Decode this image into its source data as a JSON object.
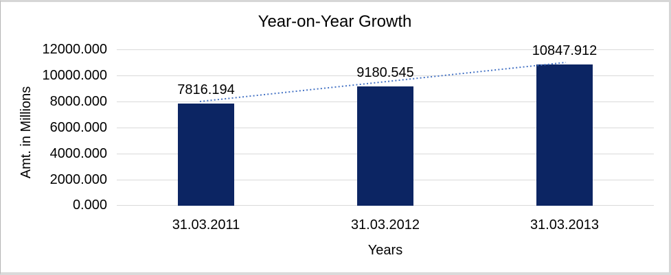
{
  "chart_data": {
    "type": "bar",
    "title": "Year-on-Year Growth",
    "categories": [
      "31.03.2011",
      "31.03.2012",
      "31.03.2013"
    ],
    "values": [
      7816.194,
      9180.545,
      10847.912
    ],
    "value_labels": [
      "7816.194",
      "9180.545",
      "10847.912"
    ],
    "xlabel": "Years",
    "ylabel": "Amt. in Millions",
    "ylim": [
      0,
      12000
    ],
    "ytick_labels": [
      "0.000",
      "2000.000",
      "4000.000",
      "6000.000",
      "8000.000",
      "10000.000",
      "12000.000"
    ],
    "grid": true,
    "legend": "none",
    "trendline": {
      "type": "linear",
      "style": "dotted",
      "from_value": 7816.194,
      "to_value": 10847.912
    },
    "colors": {
      "bar": "#0c2563",
      "trendline": "#4472c4",
      "gridline": "#d9d9d9",
      "text": "#000000"
    }
  }
}
